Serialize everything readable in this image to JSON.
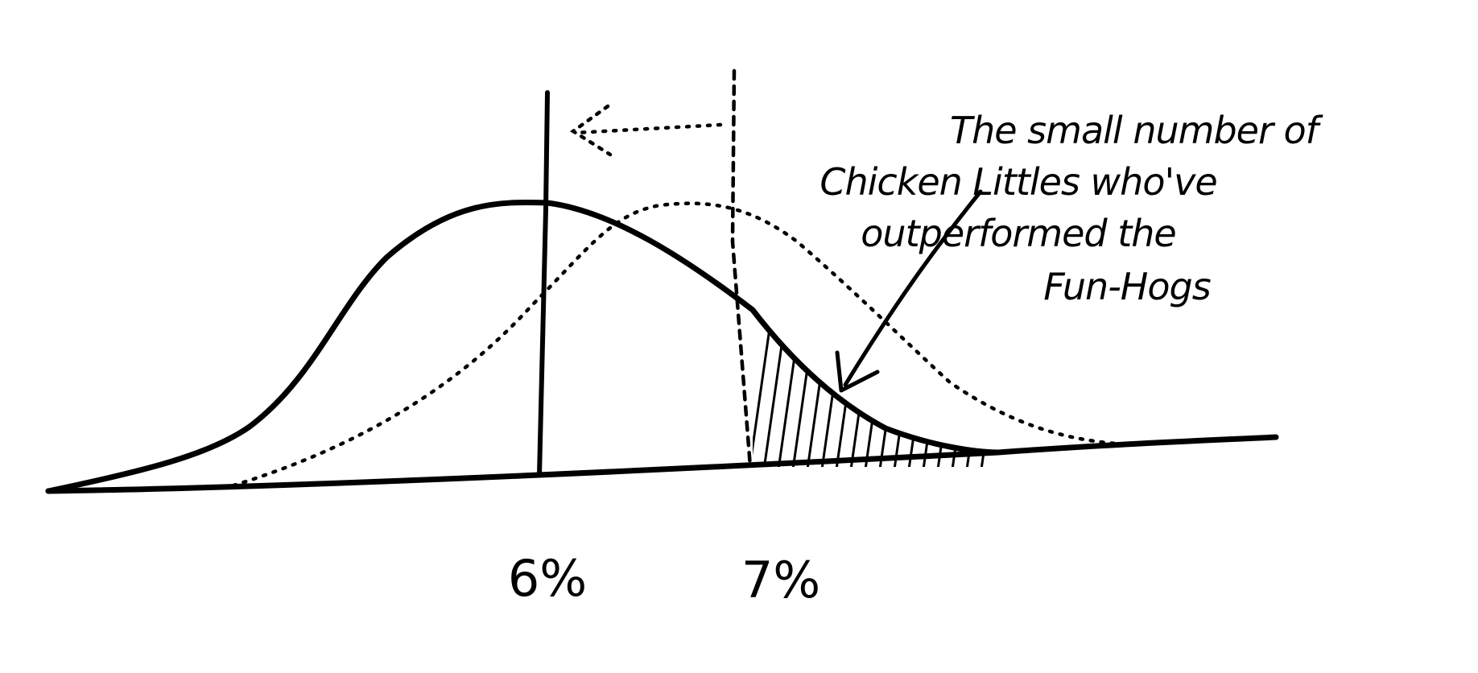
{
  "diagram": {
    "annotation": {
      "lines": [
        "The small number of",
        "Chicken Littles who've",
        "outperformed the",
        "Fun-Hogs"
      ]
    },
    "tick_labels": [
      "6%",
      "7%"
    ],
    "colors": {
      "ink": "#000000",
      "background": "#ffffff"
    }
  }
}
